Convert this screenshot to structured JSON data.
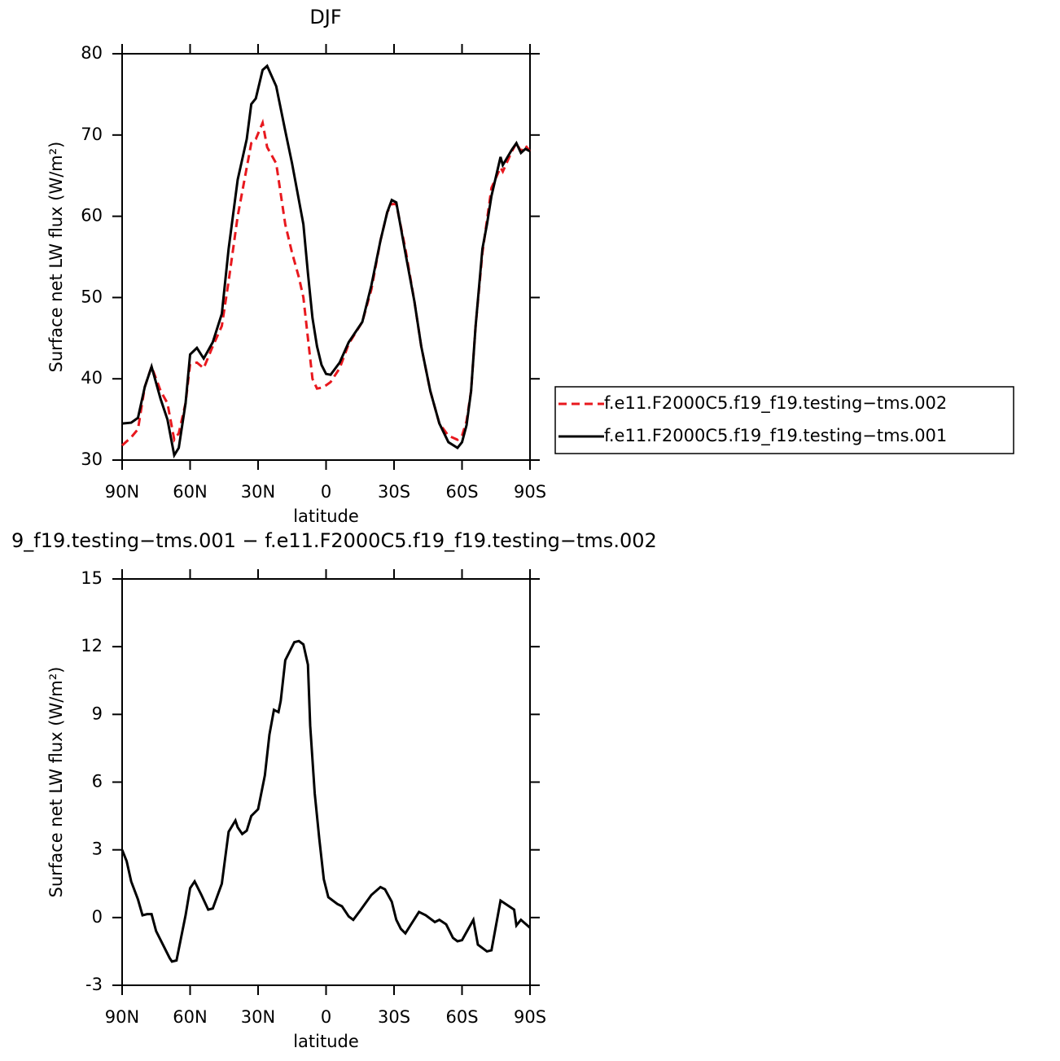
{
  "chart_data": [
    {
      "type": "line",
      "title": "DJF",
      "xlabel": "latitude",
      "ylabel": "Surface net LW flux (W/m²)",
      "x": [
        90,
        86,
        83,
        80,
        77,
        73,
        70,
        67,
        65,
        62,
        60,
        57,
        54,
        50,
        46,
        43,
        39,
        35,
        33,
        31,
        28,
        26,
        22,
        18,
        15,
        12,
        10,
        8,
        6,
        4,
        2,
        0,
        -2,
        -6,
        -10,
        -16,
        -20,
        -24,
        -27,
        -29,
        -31,
        -35,
        -39,
        -42,
        -46,
        -50,
        -54,
        -58,
        -60,
        -62,
        -64,
        -66,
        -69,
        -71,
        -73,
        -77,
        -78,
        -82,
        -84,
        -86,
        -88,
        -90
      ],
      "series": [
        {
          "name": "f.e11.F2000C5.f19_f19.testing−tms.002",
          "color": "#e8181e",
          "dashed": true,
          "values": [
            31.8,
            32.8,
            33.8,
            39,
            41.5,
            38.5,
            37,
            32.5,
            33.3,
            37,
            41.8,
            42,
            41.3,
            44,
            46.5,
            52,
            60,
            66,
            69,
            69.5,
            71.5,
            68.5,
            66.5,
            59,
            55.5,
            52.5,
            50,
            45,
            40,
            38.8,
            38.9,
            39.2,
            39.6,
            41.3,
            44.3,
            47,
            51,
            57,
            60.5,
            61.5,
            61.5,
            56,
            49.5,
            44,
            38.5,
            34.5,
            33,
            32.5,
            33,
            34.8,
            38.5,
            46.5,
            55.5,
            59.5,
            63.5,
            66,
            65.5,
            68,
            69,
            68,
            68.7,
            68
          ]
        },
        {
          "name": "f.e11.F2000C5.f19_f19.testing−tms.001",
          "color": "#000000",
          "dashed": false,
          "values": [
            34.5,
            34.6,
            35.2,
            39,
            41.5,
            37.5,
            35,
            30.6,
            31.5,
            37,
            43,
            43.8,
            42.5,
            44.5,
            48,
            56,
            64.5,
            69.5,
            73.8,
            74.5,
            78,
            78.5,
            76,
            70.5,
            66.5,
            62,
            59,
            53,
            47.5,
            44,
            41.7,
            40.6,
            40.5,
            42,
            44.5,
            47,
            51.5,
            57,
            60.5,
            62,
            61.7,
            55.5,
            49.5,
            44,
            38.5,
            34.5,
            32.2,
            31.5,
            32.2,
            34.3,
            38.5,
            46.5,
            56,
            59,
            62.5,
            67.3,
            66.3,
            68.2,
            69,
            67.8,
            68.3,
            68
          ]
        }
      ],
      "xlim": [
        90,
        -90
      ],
      "xticks": [
        {
          "value": 90,
          "label": "90N"
        },
        {
          "value": 60,
          "label": "60N"
        },
        {
          "value": 30,
          "label": "30N"
        },
        0,
        {
          "value": -30,
          "label": "30S"
        },
        {
          "value": -60,
          "label": "60S"
        },
        {
          "value": -90,
          "label": "90S"
        }
      ],
      "ylim": [
        30,
        80
      ],
      "yticks": [
        30,
        40,
        50,
        60,
        70,
        80
      ],
      "legend": "right"
    },
    {
      "type": "line",
      "title": "9_f19.testing−tms.001 − f.e11.F2000C5.f19_f19.testing−tms.002",
      "xlabel": "latitude",
      "ylabel": "Surface net LW flux (W/m²)",
      "x": [
        90,
        88,
        86,
        83,
        81,
        79,
        77,
        75,
        72,
        69,
        68,
        66,
        62,
        60,
        58,
        55,
        52,
        50,
        46,
        43,
        40,
        39,
        37,
        35,
        33,
        30,
        29,
        27,
        25,
        23,
        21,
        20,
        18,
        14,
        12,
        10,
        8,
        7,
        5,
        3,
        1,
        -1,
        -5,
        -7,
        -10,
        -12,
        -15,
        -20,
        -24,
        -26,
        -29,
        -31,
        -33,
        -35,
        -41,
        -44,
        -48,
        -50,
        -53,
        -56,
        -58,
        -60,
        -65,
        -67,
        -71,
        -73,
        -77,
        -83,
        -84,
        -86,
        -90
      ],
      "series": [
        {
          "color": "#000000",
          "values": [
            3.0,
            2.5,
            1.6,
            0.8,
            0.1,
            0.15,
            0.15,
            -0.6,
            -1.2,
            -1.8,
            -1.95,
            -1.9,
            0.1,
            1.3,
            1.6,
            1.0,
            0.35,
            0.4,
            1.5,
            3.8,
            4.3,
            4.0,
            3.7,
            3.85,
            4.5,
            4.8,
            5.3,
            6.3,
            8.1,
            9.2,
            9.1,
            9.6,
            11.4,
            12.2,
            12.25,
            12.1,
            11.2,
            8.5,
            5.5,
            3.5,
            1.7,
            0.9,
            0.6,
            0.5,
            0.05,
            -0.1,
            0.3,
            1.0,
            1.35,
            1.25,
            0.7,
            -0.1,
            -0.5,
            -0.7,
            0.25,
            0.1,
            -0.2,
            -0.1,
            -0.3,
            -0.9,
            -1.05,
            -1.0,
            -0.1,
            -1.2,
            -1.5,
            -1.45,
            0.75,
            0.35,
            -0.35,
            -0.1,
            -0.45
          ]
        }
      ],
      "xlim": [
        90,
        -90
      ],
      "xticks": [
        {
          "value": 90,
          "label": "90N"
        },
        {
          "value": 60,
          "label": "60N"
        },
        {
          "value": 30,
          "label": "30N"
        },
        0,
        {
          "value": -30,
          "label": "30S"
        },
        {
          "value": -60,
          "label": "60S"
        },
        {
          "value": -90,
          "label": "90S"
        }
      ],
      "ylim": [
        -3,
        15
      ],
      "yticks": [
        -3,
        0,
        3,
        6,
        9,
        12,
        15
      ]
    }
  ]
}
